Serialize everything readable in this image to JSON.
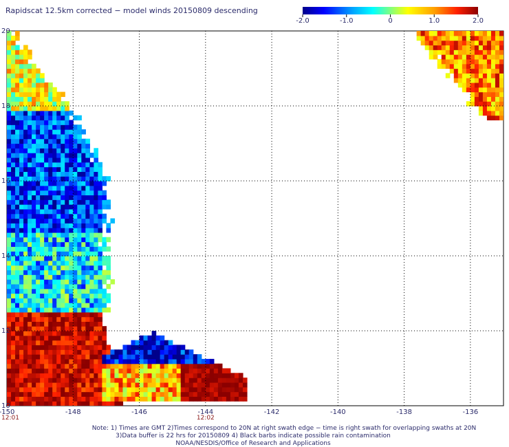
{
  "chart_data": {
    "type": "heatmap",
    "title": "Rapidscat 12.5km corrected − model winds 20150809 descending",
    "x_ticks": [
      -150,
      -148,
      -146,
      -144,
      -142,
      -140,
      -138,
      -136
    ],
    "x_tick_labels": [
      "-150",
      "-148",
      "-146",
      "-144",
      "-142",
      "-140",
      "-138",
      "-136"
    ],
    "y_ticks": [
      10,
      12,
      14,
      16,
      18,
      20
    ],
    "y_tick_labels": [
      "10",
      "12",
      "14",
      "16",
      "18",
      "20"
    ],
    "xlim": [
      -150,
      -135
    ],
    "ylim": [
      10,
      20
    ],
    "grid": "dotted",
    "colorbar": {
      "range": [
        -2.0,
        2.0
      ],
      "ticks": [
        -2.0,
        -1.0,
        0,
        1.0,
        2.0
      ],
      "tick_labels": [
        "-2.0",
        "-1.0",
        "0",
        "1.0",
        "2.0"
      ],
      "colors": [
        "#00008b",
        "#0000ff",
        "#00a0ff",
        "#00ffff",
        "#80ff80",
        "#ffff00",
        "#ffa000",
        "#ff2000",
        "#8b0000"
      ]
    },
    "swath_times": [
      {
        "lon": -150,
        "label": "12:01"
      },
      {
        "lon": -144,
        "label": "12:02"
      }
    ],
    "regions": [
      {
        "name": "left swath upper",
        "lat_range": [
          15,
          20
        ],
        "lon_range": [
          -150,
          -146.5
        ],
        "value_range": [
          -2.0,
          1.0
        ]
      },
      {
        "name": "left swath lower",
        "lat_range": [
          10,
          12.5
        ],
        "lon_range": [
          -150,
          -147
        ],
        "value_range": [
          0.5,
          2.0
        ]
      },
      {
        "name": "central patch",
        "lat_range": [
          10,
          12
        ],
        "lon_range": [
          -147,
          -143
        ],
        "value_range": [
          -2.0,
          2.0
        ]
      },
      {
        "name": "upper right swath",
        "lat_range": [
          17.5,
          20
        ],
        "lon_range": [
          -137.5,
          -135
        ],
        "value_range": [
          0.5,
          2.0
        ]
      }
    ]
  },
  "notes": {
    "line1": "Note: 1) Times are GMT 2)Times correspond to 20N at right swath edge − time is right swath for overlapping swaths at 20N",
    "line2": "3)Data buffer is 22 hrs for 20150809 4) Black barbs indicate possible rain contamination",
    "line3": "NOAA/NESDIS/Office of Research and Applications"
  }
}
